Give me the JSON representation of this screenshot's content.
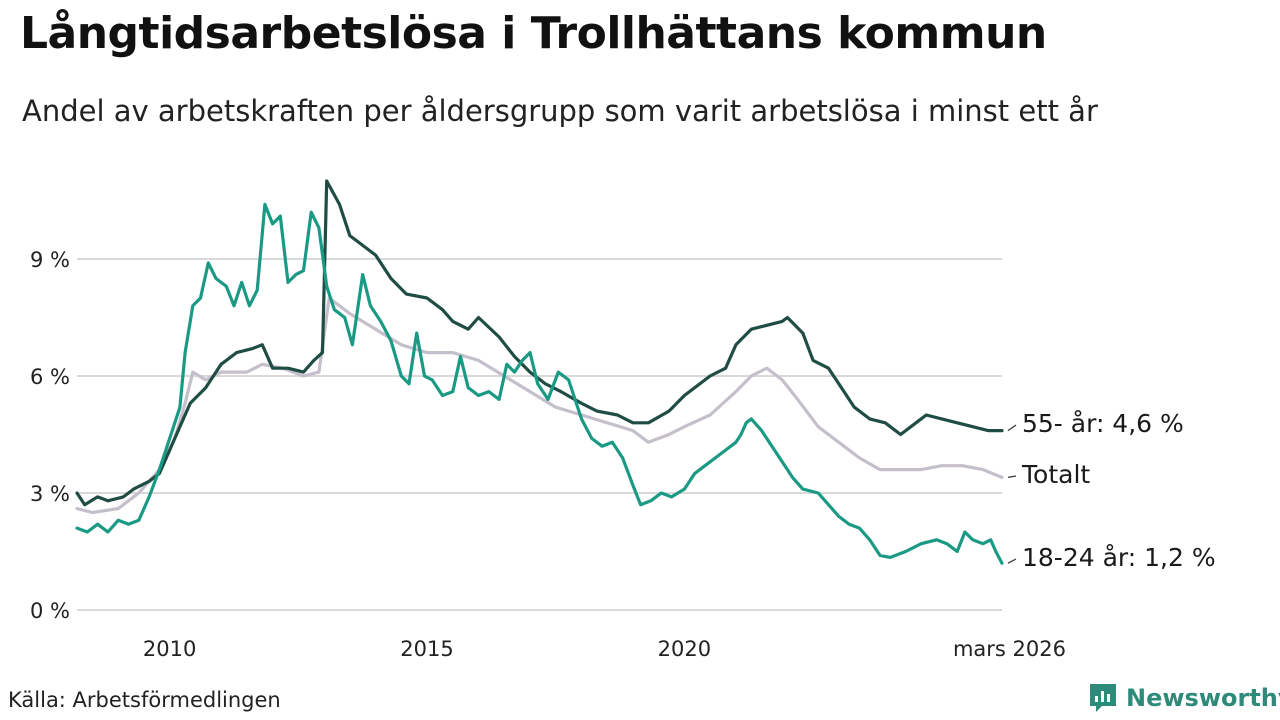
{
  "header": {
    "title": "Långtidsarbetslösa i Trollhättans kommun",
    "subtitle": "Andel av arbetskraften per åldersgrupp som varit arbetslösa i minst ett år"
  },
  "footer": {
    "source": "Källa: Arbetsförmedlingen",
    "brand": "Newsworthy"
  },
  "colors": {
    "age55": "#1f4d44",
    "total": "#c4bfcb",
    "age18_24": "#1a9a85",
    "grid": "#d9d9d9",
    "brand": "#2e8b7a"
  },
  "chart_data": {
    "type": "line",
    "title": "Långtidsarbetslösa i Trollhättans kommun",
    "subtitle": "Andel av arbetskraften per åldersgrupp som varit arbetslösa i minst ett år",
    "xlabel": "",
    "ylabel": "",
    "x_range": [
      2008.2,
      2026.17
    ],
    "ylim": [
      0,
      11.5
    ],
    "y_ticks": [
      0,
      3,
      6,
      9
    ],
    "y_tick_labels": [
      "0 %",
      "3 %",
      "6 %",
      "9 %"
    ],
    "x_ticks": [
      2010,
      2015,
      2020,
      2026.17
    ],
    "x_tick_labels": [
      "2010",
      "2015",
      "2020",
      "mars 2026"
    ],
    "grid": true,
    "series": [
      {
        "name": "Totalt",
        "label": "Totalt",
        "color": "#c4bfcb",
        "points": [
          [
            2008.2,
            2.6
          ],
          [
            2008.5,
            2.5
          ],
          [
            2009.0,
            2.6
          ],
          [
            2009.4,
            3.0
          ],
          [
            2009.8,
            3.6
          ],
          [
            2010.1,
            4.4
          ],
          [
            2010.3,
            5.3
          ],
          [
            2010.45,
            6.1
          ],
          [
            2010.7,
            5.9
          ],
          [
            2011.0,
            6.1
          ],
          [
            2011.5,
            6.1
          ],
          [
            2011.8,
            6.3
          ],
          [
            2012.2,
            6.2
          ],
          [
            2012.6,
            6.0
          ],
          [
            2012.9,
            6.1
          ],
          [
            2013.1,
            8.0
          ],
          [
            2013.5,
            7.6
          ],
          [
            2014.0,
            7.2
          ],
          [
            2014.5,
            6.8
          ],
          [
            2015.0,
            6.6
          ],
          [
            2015.5,
            6.6
          ],
          [
            2016.0,
            6.4
          ],
          [
            2016.5,
            6.0
          ],
          [
            2017.0,
            5.6
          ],
          [
            2017.5,
            5.2
          ],
          [
            2018.0,
            5.0
          ],
          [
            2018.5,
            4.8
          ],
          [
            2019.0,
            4.6
          ],
          [
            2019.3,
            4.3
          ],
          [
            2019.7,
            4.5
          ],
          [
            2020.0,
            4.7
          ],
          [
            2020.5,
            5.0
          ],
          [
            2021.0,
            5.6
          ],
          [
            2021.3,
            6.0
          ],
          [
            2021.6,
            6.2
          ],
          [
            2021.9,
            5.9
          ],
          [
            2022.2,
            5.4
          ],
          [
            2022.6,
            4.7
          ],
          [
            2023.0,
            4.3
          ],
          [
            2023.4,
            3.9
          ],
          [
            2023.8,
            3.6
          ],
          [
            2024.2,
            3.6
          ],
          [
            2024.6,
            3.6
          ],
          [
            2025.0,
            3.7
          ],
          [
            2025.4,
            3.7
          ],
          [
            2025.8,
            3.6
          ],
          [
            2026.17,
            3.4
          ]
        ]
      },
      {
        "name": "55- år",
        "label": "55- år: 4,6 %",
        "color": "#1f4d44",
        "points": [
          [
            2008.2,
            3.0
          ],
          [
            2008.35,
            2.7
          ],
          [
            2008.6,
            2.9
          ],
          [
            2008.8,
            2.8
          ],
          [
            2009.1,
            2.9
          ],
          [
            2009.3,
            3.1
          ],
          [
            2009.6,
            3.3
          ],
          [
            2009.8,
            3.5
          ],
          [
            2010.0,
            4.1
          ],
          [
            2010.2,
            4.7
          ],
          [
            2010.4,
            5.3
          ],
          [
            2010.7,
            5.7
          ],
          [
            2011.0,
            6.3
          ],
          [
            2011.3,
            6.6
          ],
          [
            2011.6,
            6.7
          ],
          [
            2011.8,
            6.8
          ],
          [
            2012.0,
            6.2
          ],
          [
            2012.3,
            6.2
          ],
          [
            2012.6,
            6.1
          ],
          [
            2012.8,
            6.4
          ],
          [
            2012.97,
            6.6
          ],
          [
            2013.05,
            11.0
          ],
          [
            2013.3,
            10.4
          ],
          [
            2013.5,
            9.6
          ],
          [
            2013.7,
            9.4
          ],
          [
            2014.0,
            9.1
          ],
          [
            2014.3,
            8.5
          ],
          [
            2014.6,
            8.1
          ],
          [
            2015.0,
            8.0
          ],
          [
            2015.3,
            7.7
          ],
          [
            2015.5,
            7.4
          ],
          [
            2015.8,
            7.2
          ],
          [
            2016.0,
            7.5
          ],
          [
            2016.4,
            7.0
          ],
          [
            2016.7,
            6.5
          ],
          [
            2017.0,
            6.1
          ],
          [
            2017.3,
            5.8
          ],
          [
            2017.6,
            5.6
          ],
          [
            2018.0,
            5.3
          ],
          [
            2018.3,
            5.1
          ],
          [
            2018.7,
            5.0
          ],
          [
            2019.0,
            4.8
          ],
          [
            2019.3,
            4.8
          ],
          [
            2019.7,
            5.1
          ],
          [
            2020.0,
            5.5
          ],
          [
            2020.5,
            6.0
          ],
          [
            2020.8,
            6.2
          ],
          [
            2021.0,
            6.8
          ],
          [
            2021.3,
            7.2
          ],
          [
            2021.6,
            7.3
          ],
          [
            2021.9,
            7.4
          ],
          [
            2022.0,
            7.5
          ],
          [
            2022.3,
            7.1
          ],
          [
            2022.5,
            6.4
          ],
          [
            2022.8,
            6.2
          ],
          [
            2023.0,
            5.8
          ],
          [
            2023.3,
            5.2
          ],
          [
            2023.6,
            4.9
          ],
          [
            2023.9,
            4.8
          ],
          [
            2024.2,
            4.5
          ],
          [
            2024.5,
            4.8
          ],
          [
            2024.7,
            5.0
          ],
          [
            2025.0,
            4.9
          ],
          [
            2025.3,
            4.8
          ],
          [
            2025.6,
            4.7
          ],
          [
            2025.9,
            4.6
          ],
          [
            2026.17,
            4.6
          ]
        ]
      },
      {
        "name": "18-24 år",
        "label": "18-24 år: 1,2 %",
        "color": "#1a9a85",
        "points": [
          [
            2008.2,
            2.1
          ],
          [
            2008.4,
            2.0
          ],
          [
            2008.6,
            2.2
          ],
          [
            2008.8,
            2.0
          ],
          [
            2009.0,
            2.3
          ],
          [
            2009.2,
            2.2
          ],
          [
            2009.4,
            2.3
          ],
          [
            2009.6,
            2.9
          ],
          [
            2009.8,
            3.6
          ],
          [
            2010.0,
            4.4
          ],
          [
            2010.2,
            5.2
          ],
          [
            2010.3,
            6.6
          ],
          [
            2010.45,
            7.8
          ],
          [
            2010.6,
            8.0
          ],
          [
            2010.75,
            8.9
          ],
          [
            2010.9,
            8.5
          ],
          [
            2011.1,
            8.3
          ],
          [
            2011.25,
            7.8
          ],
          [
            2011.4,
            8.4
          ],
          [
            2011.55,
            7.8
          ],
          [
            2011.7,
            8.2
          ],
          [
            2011.85,
            10.4
          ],
          [
            2012.0,
            9.9
          ],
          [
            2012.15,
            10.1
          ],
          [
            2012.3,
            8.4
          ],
          [
            2012.45,
            8.6
          ],
          [
            2012.6,
            8.7
          ],
          [
            2012.75,
            10.2
          ],
          [
            2012.9,
            9.8
          ],
          [
            2013.05,
            8.3
          ],
          [
            2013.2,
            7.7
          ],
          [
            2013.4,
            7.5
          ],
          [
            2013.55,
            6.8
          ],
          [
            2013.75,
            8.6
          ],
          [
            2013.9,
            7.8
          ],
          [
            2014.1,
            7.4
          ],
          [
            2014.3,
            6.9
          ],
          [
            2014.5,
            6.0
          ],
          [
            2014.65,
            5.8
          ],
          [
            2014.8,
            7.1
          ],
          [
            2014.95,
            6.0
          ],
          [
            2015.1,
            5.9
          ],
          [
            2015.3,
            5.5
          ],
          [
            2015.5,
            5.6
          ],
          [
            2015.65,
            6.5
          ],
          [
            2015.8,
            5.7
          ],
          [
            2016.0,
            5.5
          ],
          [
            2016.2,
            5.6
          ],
          [
            2016.4,
            5.4
          ],
          [
            2016.55,
            6.3
          ],
          [
            2016.7,
            6.1
          ],
          [
            2016.85,
            6.4
          ],
          [
            2017.0,
            6.6
          ],
          [
            2017.15,
            5.8
          ],
          [
            2017.35,
            5.4
          ],
          [
            2017.55,
            6.1
          ],
          [
            2017.75,
            5.9
          ],
          [
            2018.0,
            4.9
          ],
          [
            2018.2,
            4.4
          ],
          [
            2018.4,
            4.2
          ],
          [
            2018.6,
            4.3
          ],
          [
            2018.8,
            3.9
          ],
          [
            2019.0,
            3.2
          ],
          [
            2019.15,
            2.7
          ],
          [
            2019.35,
            2.8
          ],
          [
            2019.55,
            3.0
          ],
          [
            2019.75,
            2.9
          ],
          [
            2020.0,
            3.1
          ],
          [
            2020.2,
            3.5
          ],
          [
            2020.4,
            3.7
          ],
          [
            2020.6,
            3.9
          ],
          [
            2020.8,
            4.1
          ],
          [
            2021.0,
            4.3
          ],
          [
            2021.1,
            4.5
          ],
          [
            2021.2,
            4.8
          ],
          [
            2021.3,
            4.9
          ],
          [
            2021.5,
            4.6
          ],
          [
            2021.7,
            4.2
          ],
          [
            2021.9,
            3.8
          ],
          [
            2022.1,
            3.4
          ],
          [
            2022.3,
            3.1
          ],
          [
            2022.6,
            3.0
          ],
          [
            2022.8,
            2.7
          ],
          [
            2023.0,
            2.4
          ],
          [
            2023.2,
            2.2
          ],
          [
            2023.4,
            2.1
          ],
          [
            2023.6,
            1.8
          ],
          [
            2023.8,
            1.4
          ],
          [
            2024.0,
            1.35
          ],
          [
            2024.3,
            1.5
          ],
          [
            2024.6,
            1.7
          ],
          [
            2024.9,
            1.8
          ],
          [
            2025.1,
            1.7
          ],
          [
            2025.3,
            1.5
          ],
          [
            2025.45,
            2.0
          ],
          [
            2025.6,
            1.8
          ],
          [
            2025.8,
            1.7
          ],
          [
            2025.95,
            1.8
          ],
          [
            2026.05,
            1.5
          ],
          [
            2026.17,
            1.2
          ]
        ]
      }
    ]
  }
}
